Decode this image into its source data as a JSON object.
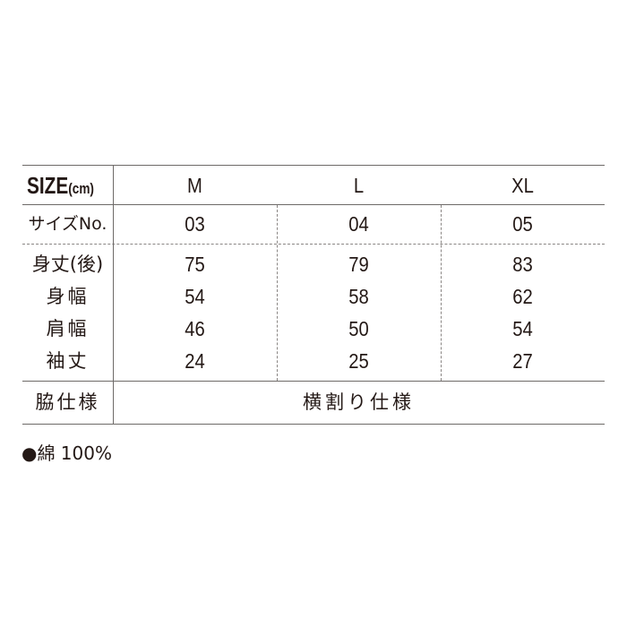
{
  "header": {
    "size_label": "SIZE",
    "unit": "(cm)",
    "columns": [
      "M",
      "L",
      "XL"
    ]
  },
  "rows": [
    {
      "label": "サイズNo.",
      "values": [
        "03",
        "04",
        "05"
      ]
    },
    {
      "label": "身丈(後)",
      "values": [
        "75",
        "79",
        "83"
      ]
    },
    {
      "label": "身幅",
      "values": [
        "54",
        "58",
        "62"
      ]
    },
    {
      "label": "肩幅",
      "values": [
        "46",
        "50",
        "54"
      ]
    },
    {
      "label": "袖丈",
      "values": [
        "24",
        "25",
        "27"
      ]
    }
  ],
  "side": {
    "label": "脇仕様",
    "value": "横割り仕様"
  },
  "material": {
    "bullet": "●",
    "text": "綿 100%"
  }
}
